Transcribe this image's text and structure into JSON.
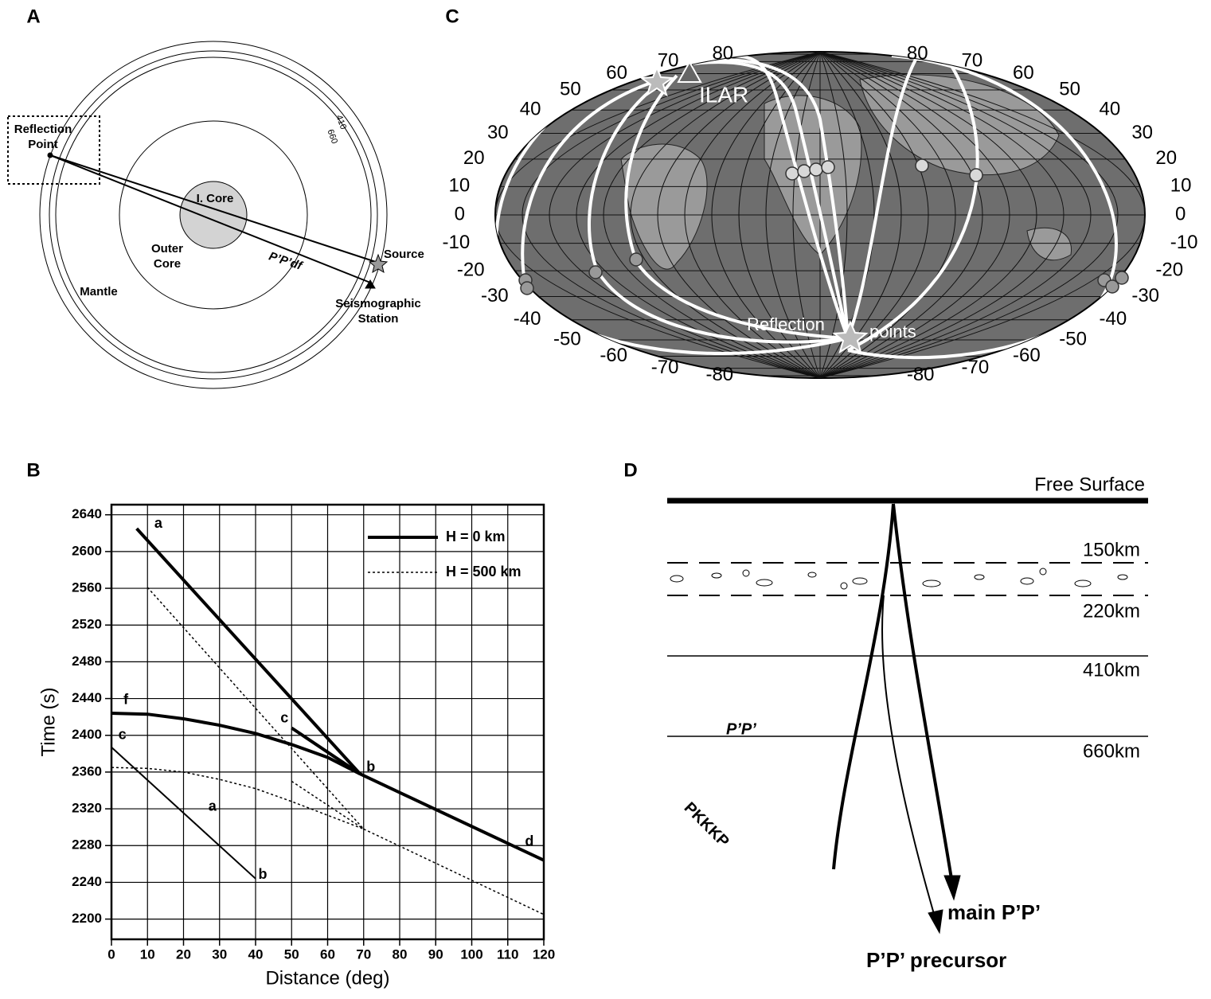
{
  "panel_labels": [
    "A",
    "B",
    "C",
    "D"
  ],
  "panel_a": {
    "reflection_point": [
      "Reflection",
      "Point"
    ],
    "inner_core": "I. Core",
    "outer_core": [
      "Outer",
      "Core"
    ],
    "mantle": "Mantle",
    "source": "Source",
    "station": [
      "Seismographic",
      "Station"
    ],
    "phase": "P’P’df",
    "depth_410": "410",
    "depth_660": "660"
  },
  "panel_c": {
    "station": "ILAR",
    "reflection_points": [
      "Reflection",
      "points"
    ],
    "latitudes": [
      80,
      70,
      60,
      50,
      40,
      30,
      20,
      10,
      0,
      -10,
      -20,
      -30,
      -40,
      -50,
      -60,
      -70,
      -80
    ]
  },
  "chart_data": {
    "type": "line",
    "xlabel": "Distance (deg)",
    "ylabel": "Time (s)",
    "xlim": [
      0,
      120
    ],
    "ylim": [
      2178,
      2651
    ],
    "xticks": [
      0,
      10,
      20,
      30,
      40,
      50,
      60,
      70,
      80,
      90,
      100,
      110,
      120
    ],
    "yticks": [
      2200,
      2240,
      2280,
      2320,
      2360,
      2400,
      2440,
      2480,
      2520,
      2560,
      2600,
      2640
    ],
    "grid": true,
    "legend": "upper right",
    "series": [
      {
        "name": "H = 0 km",
        "color": "#000000",
        "width": 4,
        "dash": "solid",
        "x": [
          7,
          69
        ],
        "values": [
          2625,
          2358
        ]
      },
      {
        "color": "#000000",
        "width": 4,
        "dash": "solid",
        "x": [
          0,
          10,
          20,
          30,
          40,
          50,
          60,
          69
        ],
        "values": [
          2424,
          2423,
          2418,
          2411,
          2402,
          2390,
          2376,
          2358
        ]
      },
      {
        "color": "#000000",
        "width": 4,
        "dash": "solid",
        "x": [
          50,
          69
        ],
        "values": [
          2408,
          2358
        ]
      },
      {
        "color": "#000000",
        "width": 4,
        "dash": "solid",
        "x": [
          69,
          120
        ],
        "values": [
          2358,
          2264
        ]
      },
      {
        "color": "#000000",
        "width": 2,
        "dash": "solid",
        "x": [
          0,
          40
        ],
        "values": [
          2387,
          2244
        ]
      },
      {
        "name": "H = 500 km",
        "color": "#000000",
        "width": 1.5,
        "dash": "dotted",
        "x": [
          10,
          70
        ],
        "values": [
          2561,
          2298
        ]
      },
      {
        "color": "#000000",
        "width": 1.5,
        "dash": "dotted",
        "x": [
          0,
          10,
          20,
          30,
          40,
          50,
          60,
          70
        ],
        "values": [
          2365,
          2364,
          2360,
          2352,
          2342,
          2328,
          2313,
          2298
        ]
      },
      {
        "color": "#000000",
        "width": 1.5,
        "dash": "dotted",
        "x": [
          50,
          70
        ],
        "values": [
          2350,
          2298
        ]
      },
      {
        "color": "#000000",
        "width": 1.5,
        "dash": "dotted",
        "x": [
          70,
          120
        ],
        "values": [
          2298,
          2205
        ]
      }
    ],
    "annotations": [
      {
        "text": "a",
        "x": 13,
        "y": 2630
      },
      {
        "text": "f",
        "x": 4,
        "y": 2438
      },
      {
        "text": "c",
        "x": 48,
        "y": 2418
      },
      {
        "text": "b",
        "x": 72,
        "y": 2365
      },
      {
        "text": "d",
        "x": 116,
        "y": 2284
      },
      {
        "text": "c",
        "x": 3,
        "y": 2400
      },
      {
        "text": "a",
        "x": 28,
        "y": 2322
      },
      {
        "text": "b",
        "x": 42,
        "y": 2248
      }
    ]
  },
  "panel_d": {
    "surface": "Free Surface",
    "depths": [
      "150km",
      "220km",
      "410km",
      "660km"
    ],
    "phase": "P’P’",
    "pkkkp": "PKKKP",
    "main": "main P’P’",
    "precursor": "P’P’ precursor"
  }
}
